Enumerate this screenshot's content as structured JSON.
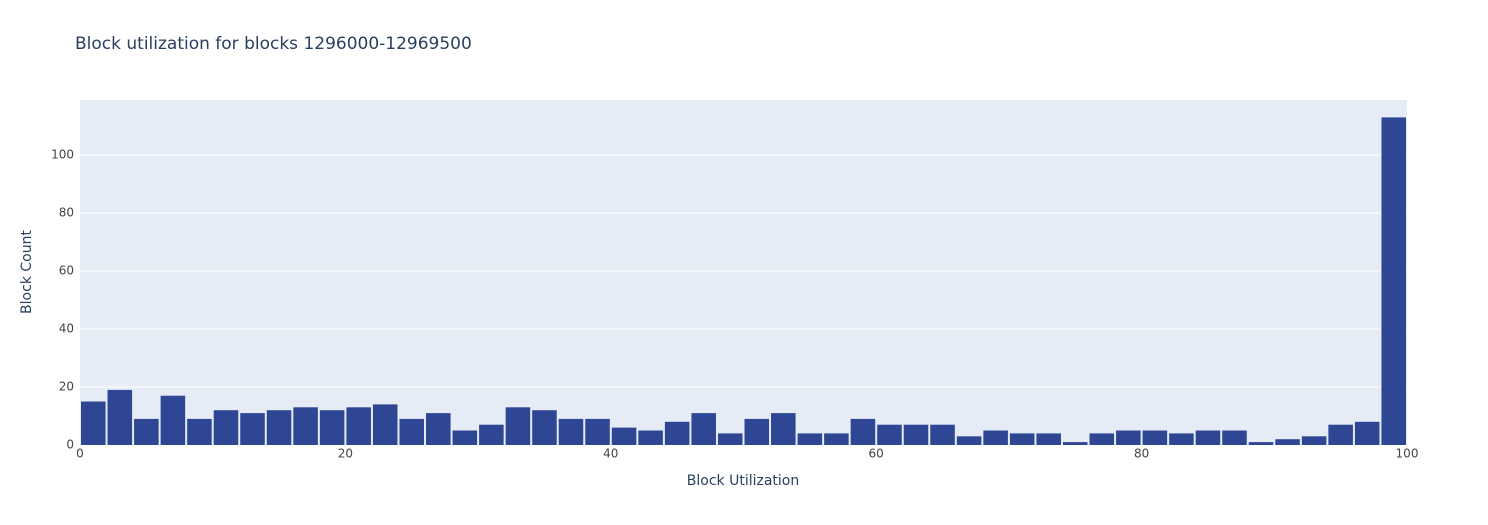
{
  "chart_data": {
    "type": "histogram",
    "title": "Block utilization for blocks 1296000-12969500",
    "x_label": "Block Utilization",
    "y_label": "Block Count",
    "bins": [
      0,
      2,
      4,
      6,
      8,
      10,
      12,
      14,
      16,
      18,
      20,
      22,
      24,
      26,
      28,
      30,
      32,
      34,
      36,
      38,
      40,
      42,
      44,
      46,
      48,
      50,
      52,
      54,
      56,
      58,
      60,
      62,
      64,
      66,
      68,
      70,
      72,
      74,
      76,
      78,
      80,
      82,
      84,
      86,
      88,
      90,
      92,
      94,
      96,
      98,
      100
    ],
    "values": [
      15,
      19,
      9,
      17,
      9,
      12,
      11,
      12,
      13,
      12,
      13,
      14,
      9,
      11,
      5,
      7,
      13,
      12,
      9,
      9,
      6,
      5,
      8,
      11,
      4,
      9,
      11,
      4,
      4,
      9,
      7,
      7,
      7,
      3,
      5,
      4,
      4,
      1,
      4,
      5,
      5,
      4,
      5,
      5,
      1,
      2,
      3,
      7,
      8,
      113
    ],
    "color": "#2f4694",
    "xlim": [
      0,
      100
    ],
    "xticks": [
      0,
      20,
      40,
      60,
      80,
      100
    ],
    "ylim": [
      0,
      119
    ],
    "yticks": [
      0,
      20,
      40,
      60,
      80,
      100
    ],
    "grid": true
  }
}
